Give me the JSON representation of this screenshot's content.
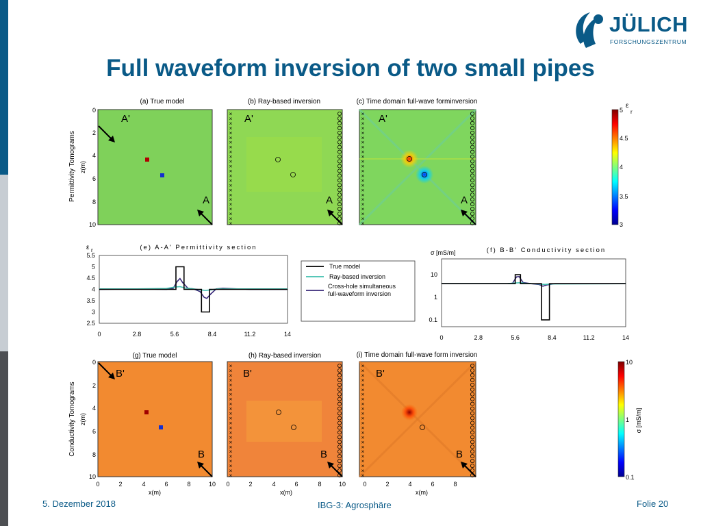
{
  "slide": {
    "title": "Full waveform inversion of two small pipes",
    "footer_date": "5. Dezember 2018",
    "footer_center": "IBG-3: Agrosphäre",
    "footer_page": "Folie 20"
  },
  "logo": {
    "name": "JÜLICH",
    "sub": "FORSCHUNGSZENTRUM",
    "icon": "juelich-swoosh-icon"
  },
  "colors": {
    "title": "#0a5a87",
    "perm_background": "#7fd15a",
    "cond_background": "#f28a30",
    "side_bar_top": "#0a5a87",
    "side_bar_mid": "#c7cdd3",
    "side_bar_bottom": "#4d4f53"
  },
  "row_labels": {
    "permittivity": "Permittivity Tomograms",
    "conductivity": "Conductivity Tomograms"
  },
  "panels": {
    "a": "(a) True model",
    "b": "(b) Ray-based inversion",
    "c": "(c) Time domain full-wave forminversion",
    "g": "(g) True model",
    "h": "(h) Ray-based inversion",
    "i": "(i) Time domain full-wave form inversion"
  },
  "markers": {
    "A": "A",
    "A_prime": "A'",
    "B": "B",
    "B_prime": "B'"
  },
  "axes": {
    "z_label": "z(m)",
    "x_label": "x(m)",
    "z_ticks": [
      "0",
      "2",
      "4",
      "6",
      "8",
      "10"
    ],
    "x_ticks": [
      "0",
      "2",
      "4",
      "6",
      "8",
      "10"
    ]
  },
  "colorbar_perm": {
    "symbol": "ε",
    "sub": "r",
    "ticks": [
      "5",
      "4.5",
      "4",
      "3.5",
      "3"
    ]
  },
  "colorbar_cond": {
    "label": "σ [mS/m]",
    "ticks": [
      "10",
      "1",
      "0.1"
    ]
  },
  "legend": {
    "true_model": "True model",
    "ray_based": "Ray-based inversion",
    "fwi_line1": "Cross-hole simultaneous",
    "fwi_line2": "full-waveform inversion"
  },
  "chart_data": [
    {
      "type": "line",
      "title": "(e) A-A' Permittivity section",
      "ylabel_symbol": "ε",
      "ylabel_sub": "r",
      "xlim": [
        0,
        14
      ],
      "ylim": [
        2.5,
        5.5
      ],
      "x_ticks": [
        "0",
        "2.8",
        "5.6",
        "8.4",
        "11.2",
        "14"
      ],
      "y_ticks": [
        "5.5",
        "5",
        "4.5",
        "4",
        "3.5",
        "3",
        "2.5"
      ],
      "series": [
        {
          "name": "True model",
          "color": "#000000",
          "x": [
            0,
            5.7,
            5.7,
            6.3,
            6.3,
            7.6,
            7.6,
            8.2,
            8.2,
            14
          ],
          "y": [
            4,
            4,
            5,
            5,
            4,
            4,
            3,
            3,
            4,
            4
          ]
        },
        {
          "name": "Ray-based inversion",
          "color": "#3fbfae",
          "x": [
            0,
            2.8,
            5.0,
            5.6,
            6.0,
            6.4,
            7.0,
            7.5,
            7.9,
            8.3,
            8.8,
            11.2,
            14
          ],
          "y": [
            4.02,
            4.02,
            4.04,
            4.1,
            4.12,
            4.06,
            4.02,
            3.98,
            3.95,
            3.98,
            4.02,
            4.02,
            4.02
          ]
        },
        {
          "name": "Cross-hole simultaneous full-waveform inversion",
          "color": "#3a2a7a",
          "x": [
            0,
            2.8,
            5.0,
            5.5,
            5.8,
            6.0,
            6.2,
            6.6,
            7.0,
            7.5,
            7.8,
            8.0,
            8.3,
            8.7,
            9.2,
            11.2,
            14
          ],
          "y": [
            4.0,
            4.02,
            4.0,
            4.05,
            4.35,
            4.48,
            4.3,
            4.05,
            4.02,
            3.9,
            3.65,
            3.6,
            3.8,
            4.02,
            4.05,
            4.0,
            4.0
          ]
        }
      ]
    },
    {
      "type": "line",
      "title": "(f) B-B' Conductivity section",
      "ylabel": "σ [mS/m]",
      "scale_y": "log",
      "xlim": [
        0,
        14
      ],
      "ylim": [
        0.05,
        50
      ],
      "x_ticks": [
        "0",
        "2.8",
        "5.6",
        "8.4",
        "11.2",
        "14"
      ],
      "y_ticks": [
        "10",
        "1",
        "0.1"
      ],
      "series": [
        {
          "name": "True model",
          "color": "#000000",
          "x": [
            0,
            5.6,
            5.6,
            6.0,
            6.0,
            7.6,
            7.6,
            8.2,
            8.2,
            14
          ],
          "y": [
            4,
            4,
            10,
            10,
            4,
            4,
            0.1,
            0.1,
            4,
            4
          ]
        },
        {
          "name": "Ray-based inversion",
          "color": "#3fbfae",
          "x": [
            0,
            5.0,
            5.6,
            6.0,
            6.4,
            7.4,
            7.8,
            8.4,
            14
          ],
          "y": [
            4,
            4,
            4.3,
            4.4,
            4.1,
            3.9,
            3.7,
            3.9,
            4
          ]
        },
        {
          "name": "Cross-hole simultaneous full-waveform inversion",
          "color": "#3a2a7a",
          "x": [
            0,
            5.0,
            5.4,
            5.7,
            5.9,
            6.2,
            6.8,
            7.4,
            7.7,
            8.0,
            8.6,
            14
          ],
          "y": [
            4,
            4,
            4.2,
            8,
            8.2,
            4.5,
            4,
            3.7,
            3.1,
            3.5,
            4,
            4
          ]
        }
      ]
    }
  ]
}
